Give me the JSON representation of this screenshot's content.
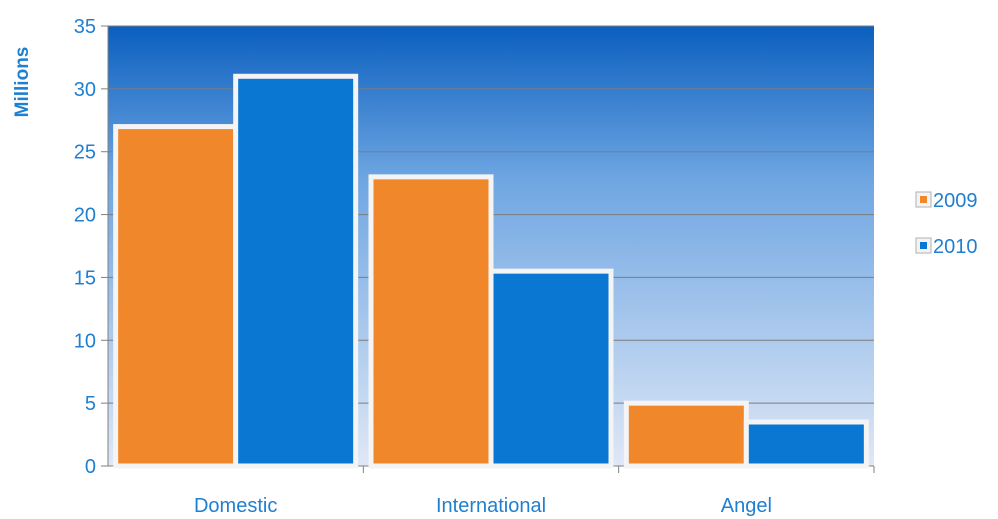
{
  "chart_data": {
    "type": "bar",
    "title": "",
    "xlabel": "",
    "ylabel": "Millions",
    "categories": [
      "Domestic",
      "International",
      "Angel"
    ],
    "series": [
      {
        "name": "2009",
        "values": [
          27,
          23,
          5
        ],
        "color": "#f0882b"
      },
      {
        "name": "2010",
        "values": [
          31,
          15.5,
          3.5
        ],
        "color": "#0a78d2"
      }
    ],
    "ylim": [
      0,
      35
    ],
    "yticks": [
      0,
      5,
      10,
      15,
      20,
      25,
      30,
      35
    ],
    "grid": true,
    "legend_position": "right",
    "plot_background": [
      "#0a5fbf",
      "#dfe8f6"
    ]
  }
}
